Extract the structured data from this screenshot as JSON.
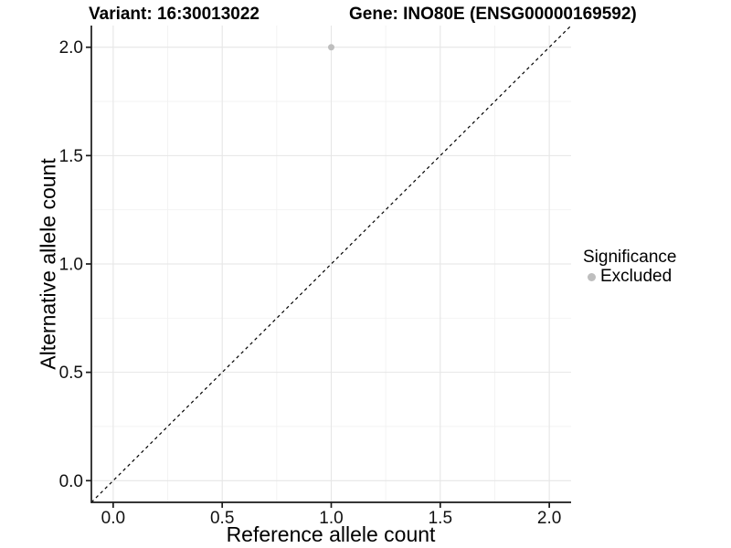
{
  "chart_data": {
    "type": "scatter",
    "titles": {
      "left": "Variant: 16:30013022",
      "right": "Gene: INO80E (ENSG00000169592)"
    },
    "xlabel": "Reference allele count",
    "ylabel": "Alternative allele count",
    "xlim": [
      -0.1,
      2.1
    ],
    "ylim": [
      -0.1,
      2.1
    ],
    "x_ticks": [
      0,
      0.5,
      1,
      1.5,
      2
    ],
    "y_ticks": [
      0,
      0.5,
      1,
      1.5,
      2
    ],
    "x_tick_labels": [
      "0.0",
      "0.5",
      "1.0",
      "1.5",
      "2.0"
    ],
    "y_tick_labels": [
      "0.0",
      "0.5",
      "1.0",
      "1.5",
      "2.0"
    ],
    "x_minor": [
      0.25,
      0.75,
      1.25,
      1.75
    ],
    "y_minor": [
      0.25,
      0.75,
      1.25,
      1.75
    ],
    "grid": true,
    "series": [
      {
        "name": "Excluded",
        "color": "#bebebe",
        "points": [
          {
            "x": 1.0,
            "y": 2.0
          }
        ]
      }
    ],
    "reference_line": {
      "type": "identity",
      "style": "dashed",
      "color": "#000000",
      "from": [
        -0.1,
        -0.1
      ],
      "to": [
        2.1,
        2.1
      ]
    },
    "legend": {
      "title": "Significance",
      "position": "right",
      "items": [
        {
          "label": "Excluded",
          "color": "#bebebe",
          "marker": "circle"
        }
      ]
    },
    "colors": {
      "background": "#ffffff",
      "grid_major": "#e6e6e6",
      "grid_minor": "#f2f2f2",
      "axis": "#1a1a1a",
      "text": "#000000",
      "point": "#bebebe"
    }
  }
}
